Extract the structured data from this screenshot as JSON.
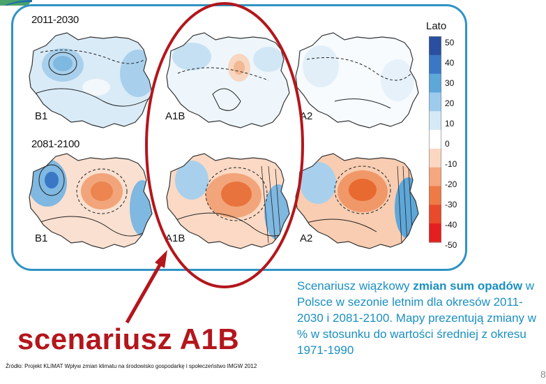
{
  "periods": {
    "first": "2011-2030",
    "second": "2081-2100"
  },
  "scenarios": {
    "b1": "B1",
    "a1b": "A1B",
    "a2": "A2"
  },
  "legend": {
    "title": "Lato",
    "ticks": [
      "50",
      "40",
      "30",
      "20",
      "10",
      "0",
      "-10",
      "-20",
      "-30",
      "-40",
      "-50"
    ],
    "colors": [
      "#2b4fa0",
      "#3a78c6",
      "#5ea7d9",
      "#9ccbec",
      "#d6e9f6",
      "#ffffff",
      "#fbd7c2",
      "#f5a77d",
      "#ee7a45",
      "#e84a2b",
      "#e51f1f"
    ]
  },
  "highlight_label": "scenariusz A1B",
  "description": {
    "pre": "Scenariusz wiązkowy ",
    "bold": "zmian sum opadów",
    "post": " w Polsce w sezonie letnim dla okresów 2011-2030 i 2081-2100. Mapy prezentują zmiany w % w stosunku do wartości średniej z okresu 1971-1990"
  },
  "source": "Źródło: Projekt KLIMAT Wpływ zmian klimatu na środowisko gospodarkę i społeczeństwo IMGW 2012",
  "page_number": "8",
  "colors": {
    "frame": "#2f93c4",
    "highlight": "#b3161c",
    "text_blue": "#1a8fc1"
  }
}
